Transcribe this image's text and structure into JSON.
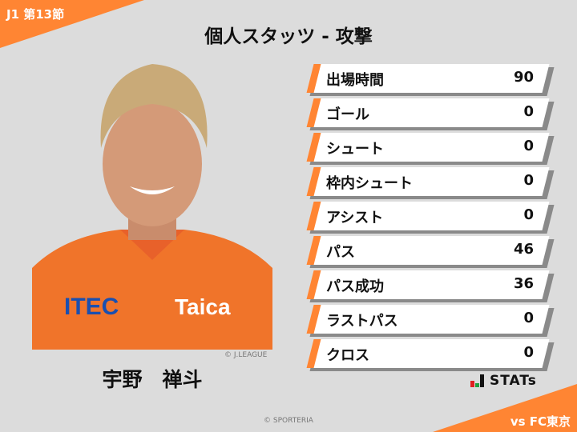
{
  "header": {
    "round": "J1 第13節",
    "title": "個人スタッツ - 攻撃"
  },
  "player": {
    "name": "宇野　禅斗",
    "photo_credit": "© J.LEAGUE"
  },
  "stats": [
    {
      "label": "出場時間",
      "value": "90"
    },
    {
      "label": "ゴール",
      "value": "0"
    },
    {
      "label": "シュート",
      "value": "0"
    },
    {
      "label": "枠内シュート",
      "value": "0"
    },
    {
      "label": "アシスト",
      "value": "0"
    },
    {
      "label": "パス",
      "value": "46"
    },
    {
      "label": "パス成功",
      "value": "36"
    },
    {
      "label": "ラストパス",
      "value": "0"
    },
    {
      "label": "クロス",
      "value": "0"
    }
  ],
  "brand": {
    "logo_text": "STATs"
  },
  "footer": {
    "copyright": "© SPORTERIA",
    "opponent": "vs FC東京"
  },
  "colors": {
    "accent": "#ff8533",
    "background": "#dcdcdc"
  }
}
